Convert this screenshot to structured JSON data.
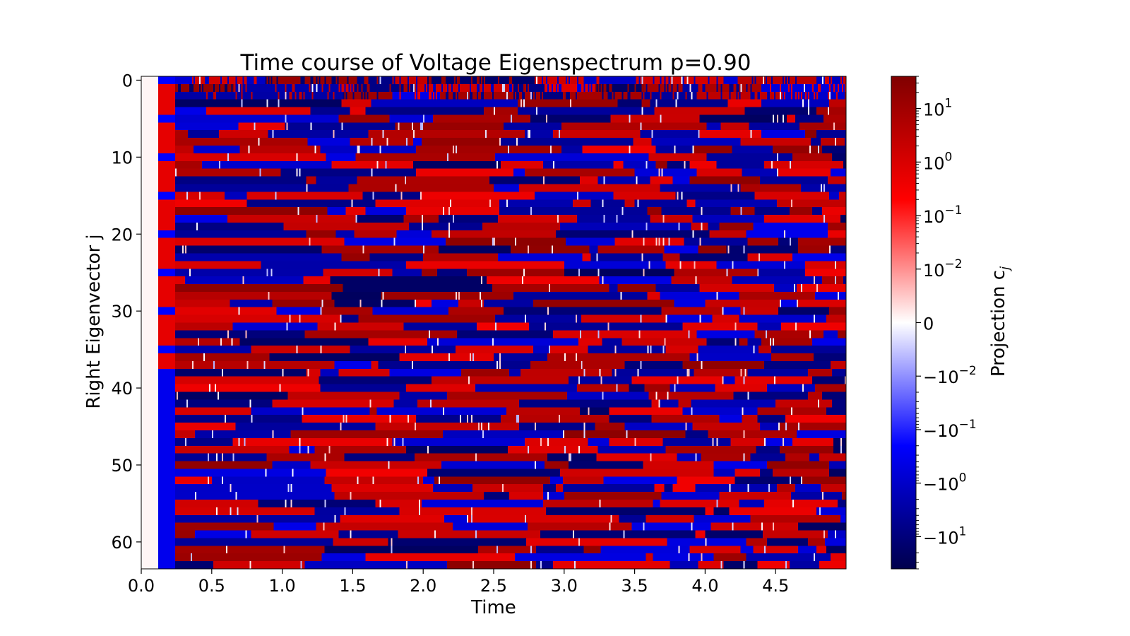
{
  "chart_data": {
    "type": "heatmap",
    "title": "Time course of Voltage Eigenspectrum p=0.90",
    "xlabel": "Time",
    "ylabel": "Right Eigenvector j",
    "xlim": [
      0.0,
      5.0
    ],
    "ylim": [
      63.5,
      -0.5
    ],
    "x_ticks": [
      "0.0",
      "0.5",
      "1.0",
      "1.5",
      "2.0",
      "2.5",
      "3.0",
      "3.5",
      "4.0",
      "4.5"
    ],
    "y_ticks": [
      "0",
      "10",
      "20",
      "30",
      "40",
      "50",
      "60"
    ],
    "colorbar": {
      "label": "Projection c",
      "label_subscript": "j",
      "scale": "symlog",
      "colormap": "seismic",
      "range": [
        -40,
        40
      ],
      "ticks": [
        {
          "value": 10,
          "base": "10",
          "exp": "1"
        },
        {
          "value": 1,
          "base": "10",
          "exp": "0"
        },
        {
          "value": 0.1,
          "base": "10",
          "exp": "−1"
        },
        {
          "value": 0.01,
          "base": "10",
          "exp": "−2"
        },
        {
          "value": 0,
          "base": "0",
          "exp": ""
        },
        {
          "value": -0.01,
          "base": "−10",
          "exp": "−2"
        },
        {
          "value": -0.1,
          "base": "−10",
          "exp": "−1"
        },
        {
          "value": -1,
          "base": "−10",
          "exp": "0"
        },
        {
          "value": -10,
          "base": "−10",
          "exp": "1"
        }
      ]
    },
    "grid": false,
    "n_rows": 64,
    "n_time_columns": 500
  }
}
